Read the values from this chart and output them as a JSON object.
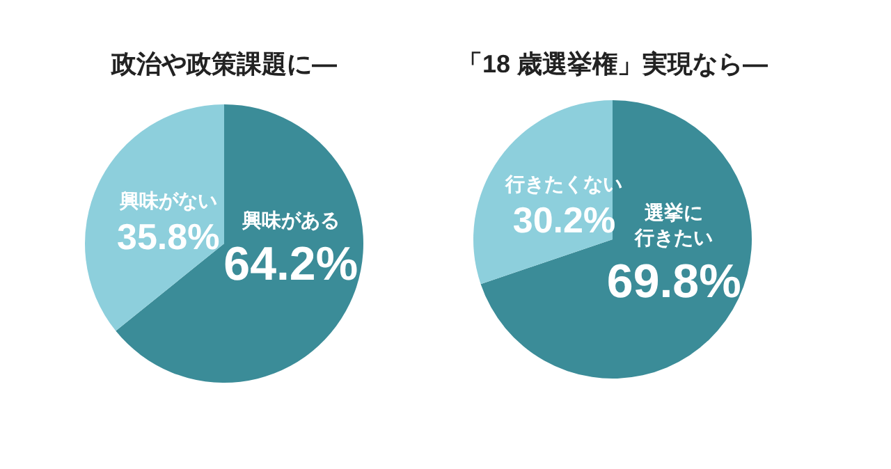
{
  "chart_data": [
    {
      "type": "pie",
      "title": "政治や政策課題に—",
      "categories": [
        "興味がある",
        "興味がない"
      ],
      "values": [
        64.2,
        35.8
      ],
      "colors": [
        "#3b8c98",
        "#8dcfdc"
      ],
      "value_labels": [
        "64.2%",
        "35.8%"
      ],
      "legend": false
    },
    {
      "type": "pie",
      "title": "「18 歳選挙権」実現なら—",
      "categories": [
        "選挙に行きたい",
        "行きたくない"
      ],
      "values": [
        69.8,
        30.2
      ],
      "colors": [
        "#3b8c98",
        "#8dcfdc"
      ],
      "value_labels": [
        "69.8%",
        "30.2%"
      ],
      "legend": false
    }
  ]
}
